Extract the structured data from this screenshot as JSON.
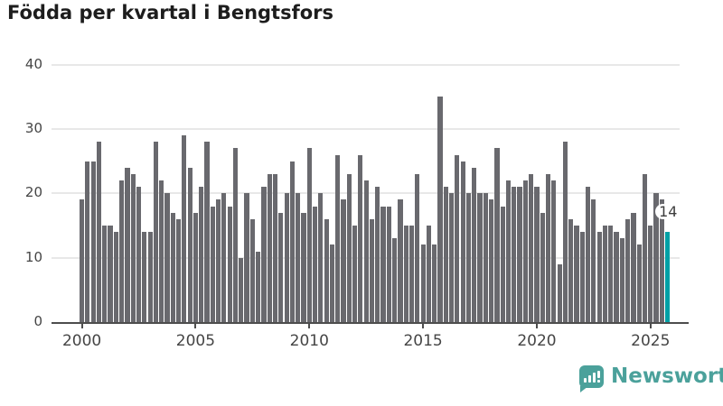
{
  "title": "Födda per kvartal i Bengtsfors",
  "chart_data": {
    "type": "bar",
    "title": "Födda per kvartal i Bengtsfors",
    "xlabel": "",
    "ylabel": "",
    "start_year": 2000,
    "quarters_per_year": 4,
    "values": [
      19,
      25,
      25,
      28,
      15,
      15,
      14,
      22,
      24,
      23,
      21,
      14,
      14,
      28,
      22,
      20,
      17,
      16,
      29,
      24,
      17,
      21,
      28,
      18,
      19,
      20,
      18,
      27,
      10,
      20,
      16,
      11,
      21,
      23,
      23,
      17,
      20,
      25,
      20,
      17,
      27,
      18,
      20,
      16,
      12,
      26,
      19,
      23,
      15,
      26,
      22,
      16,
      21,
      18,
      18,
      13,
      19,
      15,
      15,
      23,
      12,
      15,
      12,
      35,
      21,
      20,
      26,
      25,
      20,
      24,
      20,
      20,
      19,
      27,
      18,
      22,
      21,
      21,
      22,
      23,
      21,
      17,
      23,
      22,
      9,
      28,
      16,
      15,
      14,
      21,
      19,
      14,
      15,
      15,
      14,
      13,
      16,
      17,
      12,
      23,
      15,
      20,
      19,
      14
    ],
    "highlight_index": 103,
    "highlight_value_label": "14",
    "y_ticks": [
      0,
      10,
      20,
      30,
      40
    ],
    "ylim": [
      0,
      40
    ],
    "x_tick_labels": [
      "2000",
      "2005",
      "2010",
      "2015",
      "2020",
      "2025"
    ],
    "x_tick_every_n_bars": 20,
    "grid": true,
    "legend_position": "none",
    "bar_color": "#69696e",
    "highlight_color": "#00a0a5"
  },
  "annotation": {
    "label": "14"
  },
  "footer": {
    "brand": "Newsworthy"
  },
  "colors": {
    "background": "#ffffff",
    "bar": "#69696e",
    "highlight": "#00a0a5",
    "gridline": "#e8e8e8",
    "axis": "#4d4d4d",
    "brand_teal": "#4ba19b",
    "title_text": "#1d1d1d",
    "tick_text": "#454545"
  }
}
